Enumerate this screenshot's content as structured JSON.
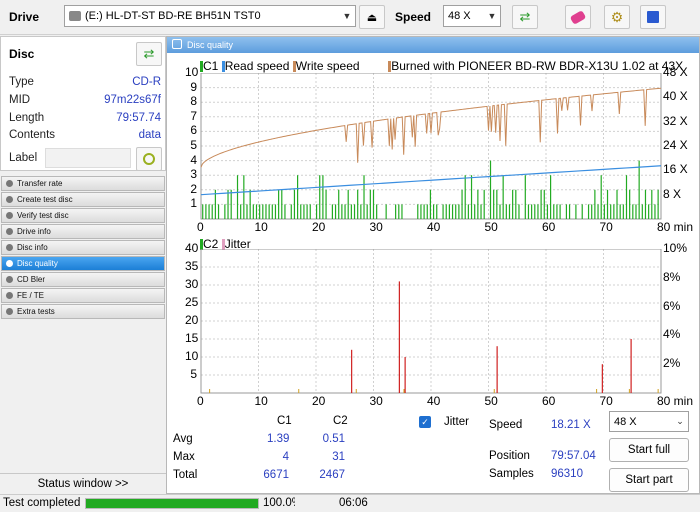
{
  "toolbar": {
    "drive_label": "Drive",
    "drive_value": "(E:)   HL-DT-ST BD-RE  BH51N TST0",
    "speed_label": "Speed",
    "speed_value": "48 X"
  },
  "disc": {
    "title": "Disc",
    "rows": [
      {
        "key": "Type",
        "value": "CD-R"
      },
      {
        "key": "MID",
        "value": "97m22s67f"
      },
      {
        "key": "Length",
        "value": "79:57.74"
      },
      {
        "key": "Contents",
        "value": "data"
      },
      {
        "key": "Label",
        "value": ""
      }
    ]
  },
  "nav": [
    {
      "label": "Transfer rate"
    },
    {
      "label": "Create test disc"
    },
    {
      "label": "Verify test disc"
    },
    {
      "label": "Drive info"
    },
    {
      "label": "Disc info"
    },
    {
      "label": "Disc quality"
    },
    {
      "label": "CD Bler"
    },
    {
      "label": "FE / TE"
    },
    {
      "label": "Extra tests"
    }
  ],
  "status_window_label": "Status window >>",
  "main_title": "Disc quality",
  "chart_data": [
    {
      "type": "line",
      "legend": [
        "C1",
        "Read speed",
        "Write speed",
        "Burned with PIONEER BD-RW   BDR-X13U 1.02 at 43X"
      ],
      "xlabels": [
        "0",
        "10",
        "20",
        "30",
        "40",
        "50",
        "60",
        "70",
        "80 min"
      ],
      "ylabels_left": [
        "1",
        "2",
        "3",
        "4",
        "5",
        "6",
        "7",
        "8",
        "9",
        "10"
      ],
      "ylabels_right": [
        "8 X",
        "16 X",
        "24 X",
        "32 X",
        "40 X",
        "48 X"
      ],
      "xlim": [
        0,
        80
      ],
      "ylim": [
        0,
        10
      ],
      "write_speed_start_x": 17,
      "write_speed_end_x": 43,
      "read_speed_start_x": 8,
      "read_speed_end_x": 17.5,
      "c1_avg": 1.39,
      "c1_max": 4
    },
    {
      "type": "bar",
      "legend": [
        "C2",
        "Jitter"
      ],
      "xlabels": [
        "0",
        "10",
        "20",
        "30",
        "40",
        "50",
        "60",
        "70",
        "80 min"
      ],
      "ylabels_left": [
        "5",
        "10",
        "15",
        "20",
        "25",
        "30",
        "35",
        "40"
      ],
      "ylabels_right": [
        "2%",
        "4%",
        "6%",
        "8%",
        "10%"
      ],
      "xlim": [
        0,
        80
      ],
      "ylim": [
        0,
        40
      ],
      "spikes": [
        {
          "x": 26.2,
          "y": 12
        },
        {
          "x": 34.5,
          "y": 31
        },
        {
          "x": 35.5,
          "y": 10
        },
        {
          "x": 51.5,
          "y": 13
        },
        {
          "x": 69.8,
          "y": 8
        },
        {
          "x": 74.8,
          "y": 15
        }
      ]
    }
  ],
  "stats": {
    "col_c1": "C1",
    "col_c2": "C2",
    "rows": [
      {
        "label": "Avg",
        "c1": "1.39",
        "c2": "0.51"
      },
      {
        "label": "Max",
        "c1": "4",
        "c2": "31"
      },
      {
        "label": "Total",
        "c1": "6671",
        "c2": "2467"
      }
    ],
    "jitter_label": "Jitter",
    "speed_label": "Speed",
    "speed_value": "18.21 X",
    "position_label": "Position",
    "position_value": "79:57.04",
    "samples_label": "Samples",
    "samples_value": "96310",
    "speed_select": "48 X",
    "start_full": "Start full",
    "start_part": "Start part"
  },
  "status": {
    "text": "Test completed",
    "percent_label": "100.0%",
    "progress": 1.0,
    "time": "06:06"
  },
  "colors": {
    "c1": "#22aa22",
    "c2": "#d02020",
    "read": "#3a8ee0",
    "write": "#c88a5a",
    "progress": "#22aa22"
  }
}
